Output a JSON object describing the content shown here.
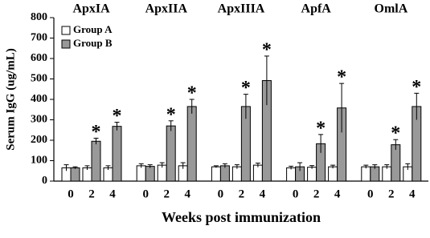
{
  "chart_data": {
    "type": "bar",
    "groups": [
      "ApxIA",
      "ApxIIA",
      "ApxIIIA",
      "ApfA",
      "OmlA"
    ],
    "categories": [
      "0",
      "2",
      "4",
      "0",
      "2",
      "4",
      "0",
      "2",
      "4",
      "0",
      "2",
      "4",
      "0",
      "2",
      "4"
    ],
    "x_label": "Weeks post immunization",
    "y_label": "Serum IgG (ug/mL)",
    "ylim": [
      0,
      800
    ],
    "yticks": [
      0,
      100,
      200,
      300,
      400,
      500,
      600,
      700,
      800
    ],
    "legend": "upper-left",
    "series": [
      {
        "name": "Group A",
        "color": "#ffffff",
        "values": [
          65,
          65,
          65,
          75,
          78,
          75,
          70,
          70,
          78,
          65,
          68,
          70,
          70,
          70,
          70
        ],
        "errors": [
          15,
          10,
          10,
          10,
          12,
          15,
          5,
          10,
          10,
          8,
          8,
          8,
          8,
          10,
          15
        ]
      },
      {
        "name": "Group B",
        "color": "#999999",
        "values": [
          65,
          195,
          268,
          72,
          270,
          365,
          75,
          365,
          492,
          70,
          183,
          358,
          70,
          178,
          365
        ],
        "errors": [
          5,
          15,
          20,
          8,
          25,
          35,
          10,
          60,
          120,
          20,
          45,
          120,
          10,
          25,
          65
        ],
        "annotations": [
          null,
          "*",
          "*",
          null,
          "*",
          "*",
          null,
          "*",
          "*",
          null,
          "*",
          "*",
          null,
          "*",
          "*"
        ]
      }
    ]
  }
}
